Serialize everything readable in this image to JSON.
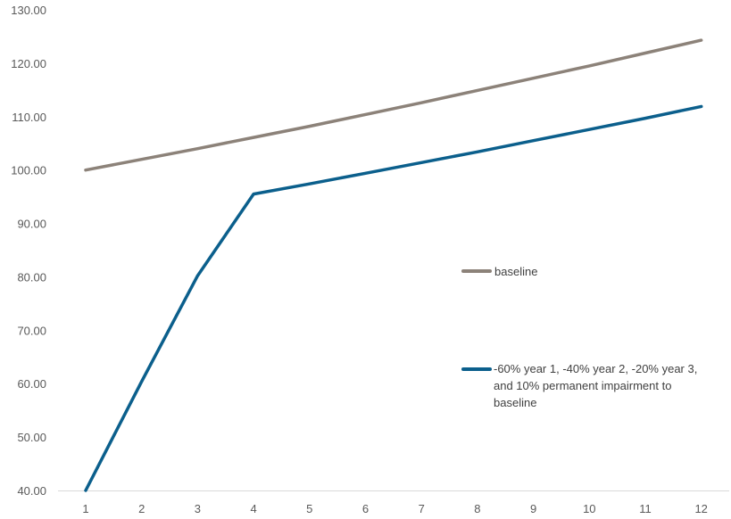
{
  "chart_data": {
    "type": "line",
    "x": [
      1,
      2,
      3,
      4,
      5,
      6,
      7,
      8,
      9,
      10,
      11,
      12
    ],
    "ylim": [
      40,
      130
    ],
    "yticks": [
      "40.00",
      "50.00",
      "60.00",
      "70.00",
      "80.00",
      "90.00",
      "100.00",
      "110.00",
      "120.00",
      "130.00"
    ],
    "xticks": [
      "1",
      "2",
      "3",
      "4",
      "5",
      "6",
      "7",
      "8",
      "9",
      "10",
      "11",
      "12"
    ],
    "grid": false,
    "legend_position": "right",
    "series": [
      {
        "name": "baseline",
        "color": "#8c8279",
        "values": [
          100.0,
          102.0,
          104.0,
          106.1,
          108.2,
          110.4,
          112.6,
          114.9,
          117.2,
          119.5,
          121.9,
          124.3
        ]
      },
      {
        "name": "-60% year 1, -40% year 2, -20% year 3, and 10% permanent impairment to baseline",
        "name_lines": [
          "-60% year 1, -40% year 2, -20% year 3,",
          "and 10% permanent impairment to",
          "baseline"
        ],
        "color": "#0b5f8c",
        "values": [
          40.0,
          60.4,
          80.2,
          95.5,
          97.4,
          99.4,
          101.4,
          103.4,
          105.5,
          107.6,
          109.7,
          111.9
        ]
      }
    ]
  }
}
